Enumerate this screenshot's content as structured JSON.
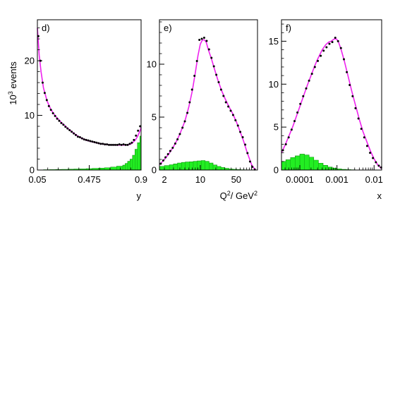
{
  "figure": {
    "ylabel_base": "10",
    "ylabel_exp": "3",
    "ylabel_rest": " events"
  },
  "colors": {
    "model_fill": "#22ee22",
    "model_line": "#119911",
    "fit_curve": "#ee22ee",
    "data_points": "#000000"
  },
  "chart_data": [
    {
      "type": "line",
      "panel_label": "d)",
      "xlabel": "y",
      "xscale": "linear",
      "xlim": [
        0.05,
        0.9
      ],
      "ylim": [
        0,
        27.5
      ],
      "yticks": [
        {
          "v": 0,
          "label": "0"
        },
        {
          "v": 10,
          "label": "10"
        },
        {
          "v": 20,
          "label": "20"
        }
      ],
      "xticks": [
        {
          "v": 0.05,
          "label": "0.05"
        },
        {
          "v": 0.475,
          "label": "0.475"
        },
        {
          "v": 0.9,
          "label": "0.9"
        }
      ],
      "points": {
        "x": [
          0.058,
          0.075,
          0.093,
          0.11,
          0.127,
          0.144,
          0.161,
          0.178,
          0.195,
          0.212,
          0.229,
          0.246,
          0.263,
          0.28,
          0.297,
          0.314,
          0.331,
          0.348,
          0.365,
          0.382,
          0.399,
          0.416,
          0.433,
          0.45,
          0.467,
          0.484,
          0.501,
          0.518,
          0.535,
          0.552,
          0.569,
          0.586,
          0.603,
          0.62,
          0.637,
          0.654,
          0.671,
          0.688,
          0.705,
          0.722,
          0.739,
          0.756,
          0.773,
          0.79,
          0.807,
          0.824,
          0.841,
          0.858,
          0.875,
          0.892
        ],
        "y": [
          24.5,
          20.0,
          16.0,
          14.1,
          12.8,
          11.7,
          11.0,
          10.4,
          9.9,
          9.4,
          9.0,
          8.6,
          8.3,
          7.9,
          7.6,
          7.3,
          7.0,
          6.7,
          6.4,
          6.1,
          6.0,
          5.8,
          5.6,
          5.5,
          5.4,
          5.3,
          5.2,
          5.1,
          5.0,
          4.9,
          4.8,
          4.8,
          4.7,
          4.7,
          4.6,
          4.6,
          4.6,
          4.6,
          4.6,
          4.7,
          4.6,
          4.7,
          4.6,
          4.6,
          4.8,
          5.0,
          5.5,
          6.3,
          7.2,
          8.0
        ]
      },
      "fit": {
        "x": [
          0.05,
          0.065,
          0.08,
          0.1,
          0.13,
          0.16,
          0.2,
          0.25,
          0.3,
          0.35,
          0.4,
          0.45,
          0.5,
          0.55,
          0.6,
          0.65,
          0.7,
          0.75,
          0.79,
          0.82,
          0.85,
          0.87,
          0.89,
          0.9
        ],
        "y": [
          26.0,
          21.0,
          18.0,
          15.0,
          12.6,
          11.1,
          9.8,
          8.6,
          7.6,
          6.7,
          5.95,
          5.45,
          5.15,
          4.9,
          4.7,
          4.6,
          4.55,
          4.55,
          4.6,
          4.8,
          5.4,
          6.1,
          7.1,
          7.8
        ]
      },
      "histogram": {
        "edges": [
          0.05,
          0.1,
          0.15,
          0.2,
          0.25,
          0.3,
          0.35,
          0.4,
          0.45,
          0.5,
          0.55,
          0.6,
          0.65,
          0.7,
          0.75,
          0.77,
          0.79,
          0.81,
          0.83,
          0.85,
          0.87,
          0.89,
          0.9
        ],
        "values": [
          0.02,
          0.05,
          0.08,
          0.1,
          0.12,
          0.15,
          0.18,
          0.2,
          0.25,
          0.3,
          0.35,
          0.42,
          0.55,
          0.7,
          0.9,
          1.2,
          1.6,
          2.0,
          2.7,
          3.8,
          5.0,
          6.2
        ]
      }
    },
    {
      "type": "line",
      "panel_label": "e)",
      "xlabel_base": "Q",
      "xlabel_exp": "2",
      "xlabel_rest": "/ GeV",
      "xlabel_exp2": "2",
      "xscale": "log",
      "xlim": [
        1.6,
        130
      ],
      "ylim": [
        0,
        14.2
      ],
      "yticks": [
        {
          "v": 0,
          "label": "0"
        },
        {
          "v": 5,
          "label": "5"
        },
        {
          "v": 10,
          "label": "10"
        }
      ],
      "xticks": [
        {
          "v": 2,
          "label": "2"
        },
        {
          "v": 10,
          "label": "10"
        },
        {
          "v": 50,
          "label": "50"
        }
      ],
      "points": {
        "x": [
          1.7,
          1.9,
          2.1,
          2.35,
          2.6,
          2.9,
          3.25,
          3.6,
          4.0,
          4.5,
          5.0,
          5.6,
          6.2,
          6.9,
          7.7,
          8.6,
          9.6,
          10.7,
          11.9,
          13.3,
          14.8,
          16.5,
          18.4,
          20.5,
          22.8,
          25.4,
          28.3,
          31.5,
          35.1,
          39.1,
          43.5,
          48.4,
          54,
          60,
          67,
          75,
          83,
          93,
          103,
          115
        ],
        "y": [
          0.6,
          0.9,
          1.2,
          1.5,
          1.8,
          2.1,
          2.5,
          2.9,
          3.4,
          4.0,
          4.6,
          5.4,
          6.4,
          7.6,
          8.9,
          10.3,
          12.3,
          12.4,
          12.5,
          12.2,
          11.4,
          10.6,
          9.8,
          9.0,
          8.3,
          7.6,
          7.0,
          6.4,
          6.0,
          5.6,
          5.2,
          4.7,
          4.2,
          3.6,
          3.1,
          2.4,
          1.6,
          0.8,
          0.3,
          0.05
        ]
      },
      "fit": {
        "x": [
          1.6,
          2.0,
          2.5,
          3.0,
          3.5,
          4.0,
          5.0,
          6.0,
          7.0,
          8.0,
          9.0,
          10.0,
          11.0,
          12.0,
          13.0,
          14.5,
          16.5,
          19.0,
          22.0,
          26.0,
          30.0,
          36.0,
          42.0,
          50.0,
          60.0,
          70.0,
          80.0,
          90.0,
          100.0,
          110.0,
          120.0
        ],
        "y": [
          0.5,
          1.0,
          1.6,
          2.2,
          2.8,
          3.4,
          4.6,
          6.0,
          7.5,
          9.2,
          10.8,
          11.9,
          12.3,
          12.3,
          12.1,
          11.3,
          10.5,
          9.5,
          8.5,
          7.5,
          6.8,
          6.0,
          5.4,
          4.6,
          3.6,
          2.7,
          1.8,
          1.1,
          0.5,
          0.2,
          0.05
        ]
      },
      "histogram": {
        "edges": [
          1.6,
          2.0,
          2.5,
          3.0,
          3.6,
          4.3,
          5.1,
          6.1,
          7.3,
          8.7,
          10.4,
          12.4,
          14.8,
          17.7,
          21.1,
          25.2,
          30.1,
          36.0,
          43.0,
          51.3,
          61.3,
          73.2,
          87.4,
          104,
          125
        ],
        "values": [
          0.35,
          0.42,
          0.5,
          0.58,
          0.66,
          0.72,
          0.76,
          0.78,
          0.82,
          0.86,
          0.9,
          0.82,
          0.66,
          0.48,
          0.34,
          0.24,
          0.16,
          0.1,
          0.07,
          0.05,
          0.03,
          0.02,
          0.01,
          0.005
        ]
      }
    },
    {
      "type": "line",
      "panel_label": "f)",
      "xlabel": "x",
      "xscale": "log",
      "xlim": [
        3.2e-05,
        0.016
      ],
      "ylim": [
        0,
        17.5
      ],
      "yticks": [
        {
          "v": 0,
          "label": "0"
        },
        {
          "v": 5,
          "label": "5"
        },
        {
          "v": 10,
          "label": "10"
        },
        {
          "v": 15,
          "label": "15"
        }
      ],
      "xticks": [
        {
          "v": 0.0001,
          "label": "0.0001"
        },
        {
          "v": 0.001,
          "label": "0.001"
        },
        {
          "v": 0.01,
          "label": "0.01"
        }
      ],
      "points": {
        "x": [
          3.5e-05,
          4.2e-05,
          5e-05,
          6e-05,
          7.2e-05,
          8.6e-05,
          0.000103,
          0.000123,
          0.000148,
          0.000177,
          0.000212,
          0.000254,
          0.000305,
          0.000365,
          0.000437,
          0.000523,
          0.000627,
          0.00075,
          0.0009,
          0.00107,
          0.00128,
          0.00154,
          0.00184,
          0.0022,
          0.00264,
          0.00316,
          0.00379,
          0.00453,
          0.00543,
          0.0065,
          0.0078,
          0.0093,
          0.0112,
          0.0134,
          0.0155
        ],
        "y": [
          2.3,
          3.0,
          3.8,
          4.7,
          5.7,
          6.7,
          7.7,
          8.6,
          9.5,
          10.4,
          11.2,
          12.0,
          12.7,
          13.3,
          13.9,
          14.3,
          14.7,
          14.9,
          15.4,
          15.0,
          14.2,
          12.9,
          11.4,
          9.9,
          8.6,
          7.2,
          6.0,
          4.8,
          3.8,
          2.8,
          2.0,
          1.4,
          0.9,
          0.5,
          0.3
        ]
      },
      "fit": {
        "x": [
          3.2e-05,
          4e-05,
          5e-05,
          6.5e-05,
          8e-05,
          0.0001,
          0.00013,
          0.00016,
          0.0002,
          0.00025,
          0.0003,
          0.0004,
          0.0005,
          0.0006,
          0.0007,
          0.0008,
          0.0009,
          0.001,
          0.0011,
          0.0013,
          0.0016,
          0.002,
          0.0025,
          0.003,
          0.004,
          0.005,
          0.0065,
          0.008,
          0.01,
          0.0125,
          0.016
        ],
        "y": [
          2.0,
          2.9,
          3.9,
          5.1,
          6.2,
          7.4,
          8.8,
          9.9,
          11.0,
          12.1,
          12.9,
          14.0,
          14.6,
          14.9,
          15.0,
          15.2,
          15.3,
          15.2,
          14.9,
          14.0,
          12.6,
          10.9,
          9.2,
          7.9,
          5.9,
          4.5,
          3.2,
          2.2,
          1.3,
          0.6,
          0.15
        ]
      },
      "histogram": {
        "edges": [
          3.2e-05,
          4.2e-05,
          5.6e-05,
          7.5e-05,
          0.0001,
          0.000133,
          0.000178,
          0.000237,
          0.000316,
          0.000422,
          0.000562,
          0.00075,
          0.001,
          0.00133,
          0.00178,
          0.00237,
          0.00316,
          0.00422,
          0.00562,
          0.0075,
          0.01,
          0.016
        ],
        "values": [
          1.0,
          1.2,
          1.45,
          1.65,
          1.85,
          1.75,
          1.5,
          1.15,
          0.8,
          0.55,
          0.35,
          0.22,
          0.13,
          0.08,
          0.05,
          0.03,
          0.02,
          0.01,
          0.005,
          0.002,
          0.001
        ]
      }
    }
  ]
}
